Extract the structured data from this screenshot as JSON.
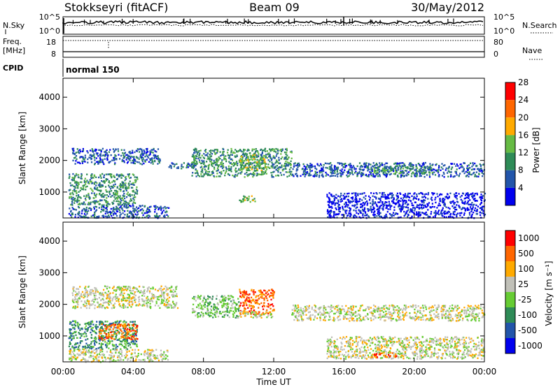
{
  "header": {
    "station": "Stokkseyri (fitACF)",
    "beam": "Beam 09",
    "date": "30/May/2012"
  },
  "noise_panel": {
    "left_label": "N.Sky",
    "right_label": "N.Search",
    "ticks_left": [
      "10^5",
      "10^0"
    ],
    "ticks_right": [
      "10^5",
      "10^0"
    ]
  },
  "freq_panel": {
    "left_label_line1": "Freq.",
    "left_label_line2": "[MHz]",
    "right_label": "Nave",
    "ticks_left": [
      "18",
      "8"
    ],
    "ticks_right": [
      "80",
      "0"
    ]
  },
  "cpid_panel": {
    "left_label": "CPID",
    "program": "normal 150"
  },
  "chart_data": [
    {
      "type": "heatmap",
      "name": "power",
      "ylabel": "Slant Range [km]",
      "xlabel": "",
      "ylim": [
        180,
        4600
      ],
      "xlim": [
        0,
        24
      ],
      "yticks": [
        "1000",
        "2000",
        "3000",
        "4000"
      ],
      "xticks": [],
      "colorbar": {
        "label": "Power [dB]",
        "ticks": [
          "4",
          "8",
          "12",
          "16",
          "20",
          "24",
          "28"
        ],
        "colors": [
          "#0000ee",
          "#2255aa",
          "#2e8b57",
          "#66bb44",
          "#ffaa00",
          "#ff6600",
          "#ff0000"
        ]
      },
      "regions": [
        {
          "x0": 0.5,
          "x1": 5.5,
          "y0": 1900,
          "y1": 2400,
          "level": 1
        },
        {
          "x0": 0.3,
          "x1": 4.2,
          "y0": 600,
          "y1": 1600,
          "level": 2
        },
        {
          "x0": 0.3,
          "x1": 6.0,
          "y0": 200,
          "y1": 600,
          "level": 1
        },
        {
          "x0": 6.0,
          "x1": 7.5,
          "y0": 1750,
          "y1": 1950,
          "level": 1
        },
        {
          "x0": 7.3,
          "x1": 13.0,
          "y0": 1500,
          "y1": 2400,
          "level": 2
        },
        {
          "x0": 10.0,
          "x1": 11.5,
          "y0": 1700,
          "y1": 2200,
          "level": 3
        },
        {
          "x0": 13.0,
          "x1": 24.0,
          "y0": 1500,
          "y1": 1950,
          "level": 1
        },
        {
          "x0": 17.5,
          "x1": 21.0,
          "y0": 1600,
          "y1": 1850,
          "level": 2
        },
        {
          "x0": 15.0,
          "x1": 24.0,
          "y0": 200,
          "y1": 1000,
          "level": 0
        },
        {
          "x0": 10.0,
          "x1": 11.0,
          "y0": 700,
          "y1": 900,
          "level": 3
        }
      ]
    },
    {
      "type": "heatmap",
      "name": "velocity",
      "ylabel": "Slant Range [km]",
      "xlabel": "Time UT",
      "ylim": [
        180,
        4600
      ],
      "xlim": [
        0,
        24
      ],
      "yticks": [
        "1000",
        "2000",
        "3000",
        "4000"
      ],
      "xticks": [
        "00:00",
        "04:00",
        "08:00",
        "12:00",
        "16:00",
        "20:00",
        "00:00"
      ],
      "colorbar": {
        "label": "Velocity [m s⁻¹]",
        "ticks": [
          "1000",
          "500",
          "100",
          "25",
          "-25",
          "-100",
          "-500",
          "-1000"
        ],
        "colors": [
          "#0000ee",
          "#2255aa",
          "#2e8b57",
          "#66cc33",
          "#c0c0b8",
          "#ffaa00",
          "#ff6600",
          "#ff0000"
        ]
      },
      "regions": [
        {
          "x0": 0.5,
          "x1": 6.5,
          "y0": 1900,
          "y1": 2600,
          "level": 4
        },
        {
          "x0": 0.3,
          "x1": 4.2,
          "y0": 600,
          "y1": 1500,
          "level": 2
        },
        {
          "x0": 2.0,
          "x1": 4.2,
          "y0": 900,
          "y1": 1400,
          "level": 6
        },
        {
          "x0": 0.3,
          "x1": 6.0,
          "y0": 200,
          "y1": 600,
          "level": 4
        },
        {
          "x0": 7.3,
          "x1": 10.0,
          "y0": 1600,
          "y1": 2300,
          "level": 3
        },
        {
          "x0": 10.0,
          "x1": 12.0,
          "y0": 1700,
          "y1": 2500,
          "level": 6
        },
        {
          "x0": 10.0,
          "x1": 12.0,
          "y0": 1600,
          "y1": 1800,
          "level": 4
        },
        {
          "x0": 13.0,
          "x1": 24.0,
          "y0": 1500,
          "y1": 2000,
          "level": 4
        },
        {
          "x0": 15.0,
          "x1": 24.0,
          "y0": 300,
          "y1": 1000,
          "level": 4
        },
        {
          "x0": 17.5,
          "x1": 19.0,
          "y0": 350,
          "y1": 500,
          "level": 6
        }
      ]
    }
  ]
}
